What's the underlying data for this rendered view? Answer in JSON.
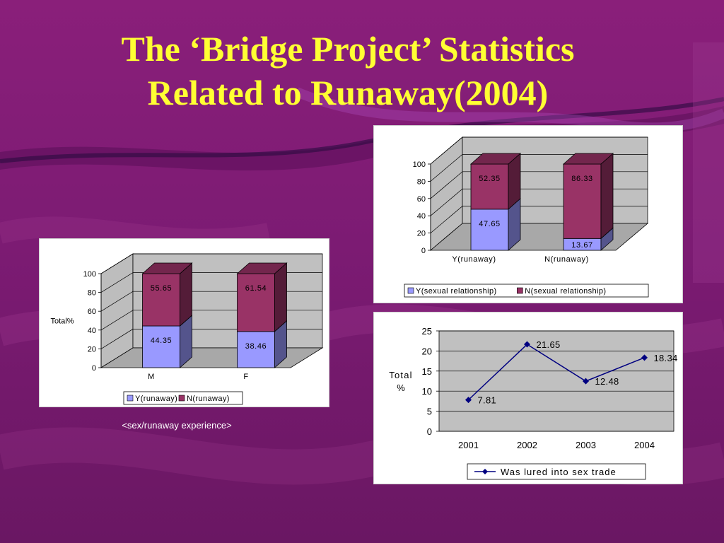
{
  "slide": {
    "title_line1": "The ‘Bridge Project’ Statistics",
    "title_line2": "Related to Runaway(2004)",
    "caption": "<sex/runaway experience>",
    "colors": {
      "background": "#7c1b73",
      "title": "#ffff33",
      "blue_series": "#9999ff",
      "maroon_series": "#993366",
      "line": "#000080"
    }
  },
  "chart_data": [
    {
      "type": "bar",
      "stacked": true,
      "three_d": true,
      "categories": [
        "M",
        "F"
      ],
      "series": [
        {
          "name": "Y(runaway)",
          "values": [
            44.35,
            38.46
          ],
          "labels": [
            "44.35",
            "38.46"
          ],
          "color": "#9999ff"
        },
        {
          "name": "N(runaway)",
          "values": [
            55.65,
            61.54
          ],
          "labels": [
            "55.65",
            "61.54"
          ],
          "color": "#993366"
        }
      ],
      "ylabel": "Total%",
      "ylim": [
        0,
        100
      ],
      "yticks": [
        "0",
        "20",
        "40",
        "60",
        "80",
        "100"
      ],
      "grid": true,
      "legend_position": "bottom"
    },
    {
      "type": "bar",
      "stacked": true,
      "three_d": true,
      "categories": [
        "Y(runaway)",
        "N(runaway)"
      ],
      "series": [
        {
          "name": "Y(sexual relationship)",
          "values": [
            47.65,
            13.67
          ],
          "labels": [
            "47.65",
            "13.67"
          ],
          "color": "#9999ff"
        },
        {
          "name": "N(sexual relationship)",
          "values": [
            52.35,
            86.33
          ],
          "labels": [
            "52.35",
            "86.33"
          ],
          "color": "#993366"
        }
      ],
      "ylim": [
        0,
        100
      ],
      "yticks": [
        "0",
        "20",
        "40",
        "60",
        "80",
        "100"
      ],
      "grid": true,
      "legend_position": "bottom"
    },
    {
      "type": "line",
      "x": [
        "2001",
        "2002",
        "2003",
        "2004"
      ],
      "series": [
        {
          "name": "Was lured into sex trade",
          "values": [
            7.81,
            21.65,
            12.48,
            18.34
          ],
          "labels": [
            "7.81",
            "21.65",
            "12.48",
            "18.34"
          ],
          "color": "#000080"
        }
      ],
      "ylabel": "Total %",
      "ylim": [
        0,
        25
      ],
      "yticks": [
        "0",
        "5",
        "10",
        "15",
        "20",
        "25"
      ],
      "grid": true,
      "legend_position": "bottom"
    }
  ]
}
